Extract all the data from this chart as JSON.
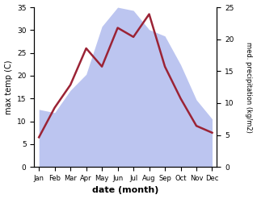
{
  "months": [
    "Jan",
    "Feb",
    "Mar",
    "Apr",
    "May",
    "Jun",
    "Jul",
    "Aug",
    "Sep",
    "Oct",
    "Nov",
    "Dec"
  ],
  "temperature": [
    6.5,
    13.0,
    18.0,
    26.0,
    22.0,
    30.5,
    28.5,
    33.5,
    22.0,
    15.0,
    9.0,
    7.5
  ],
  "precipitation": [
    9.0,
    8.5,
    12.0,
    14.5,
    22.0,
    25.0,
    24.5,
    21.5,
    20.5,
    16.0,
    10.5,
    7.5
  ],
  "temp_color": "#9b2335",
  "precip_fill_color": "#bcc5f0",
  "ylabel_left": "max temp (C)",
  "ylabel_right": "med. precipitation (kg/m2)",
  "xlabel": "date (month)",
  "ylim_left": [
    0,
    35
  ],
  "ylim_right": [
    0,
    25
  ],
  "background_color": "#ffffff"
}
